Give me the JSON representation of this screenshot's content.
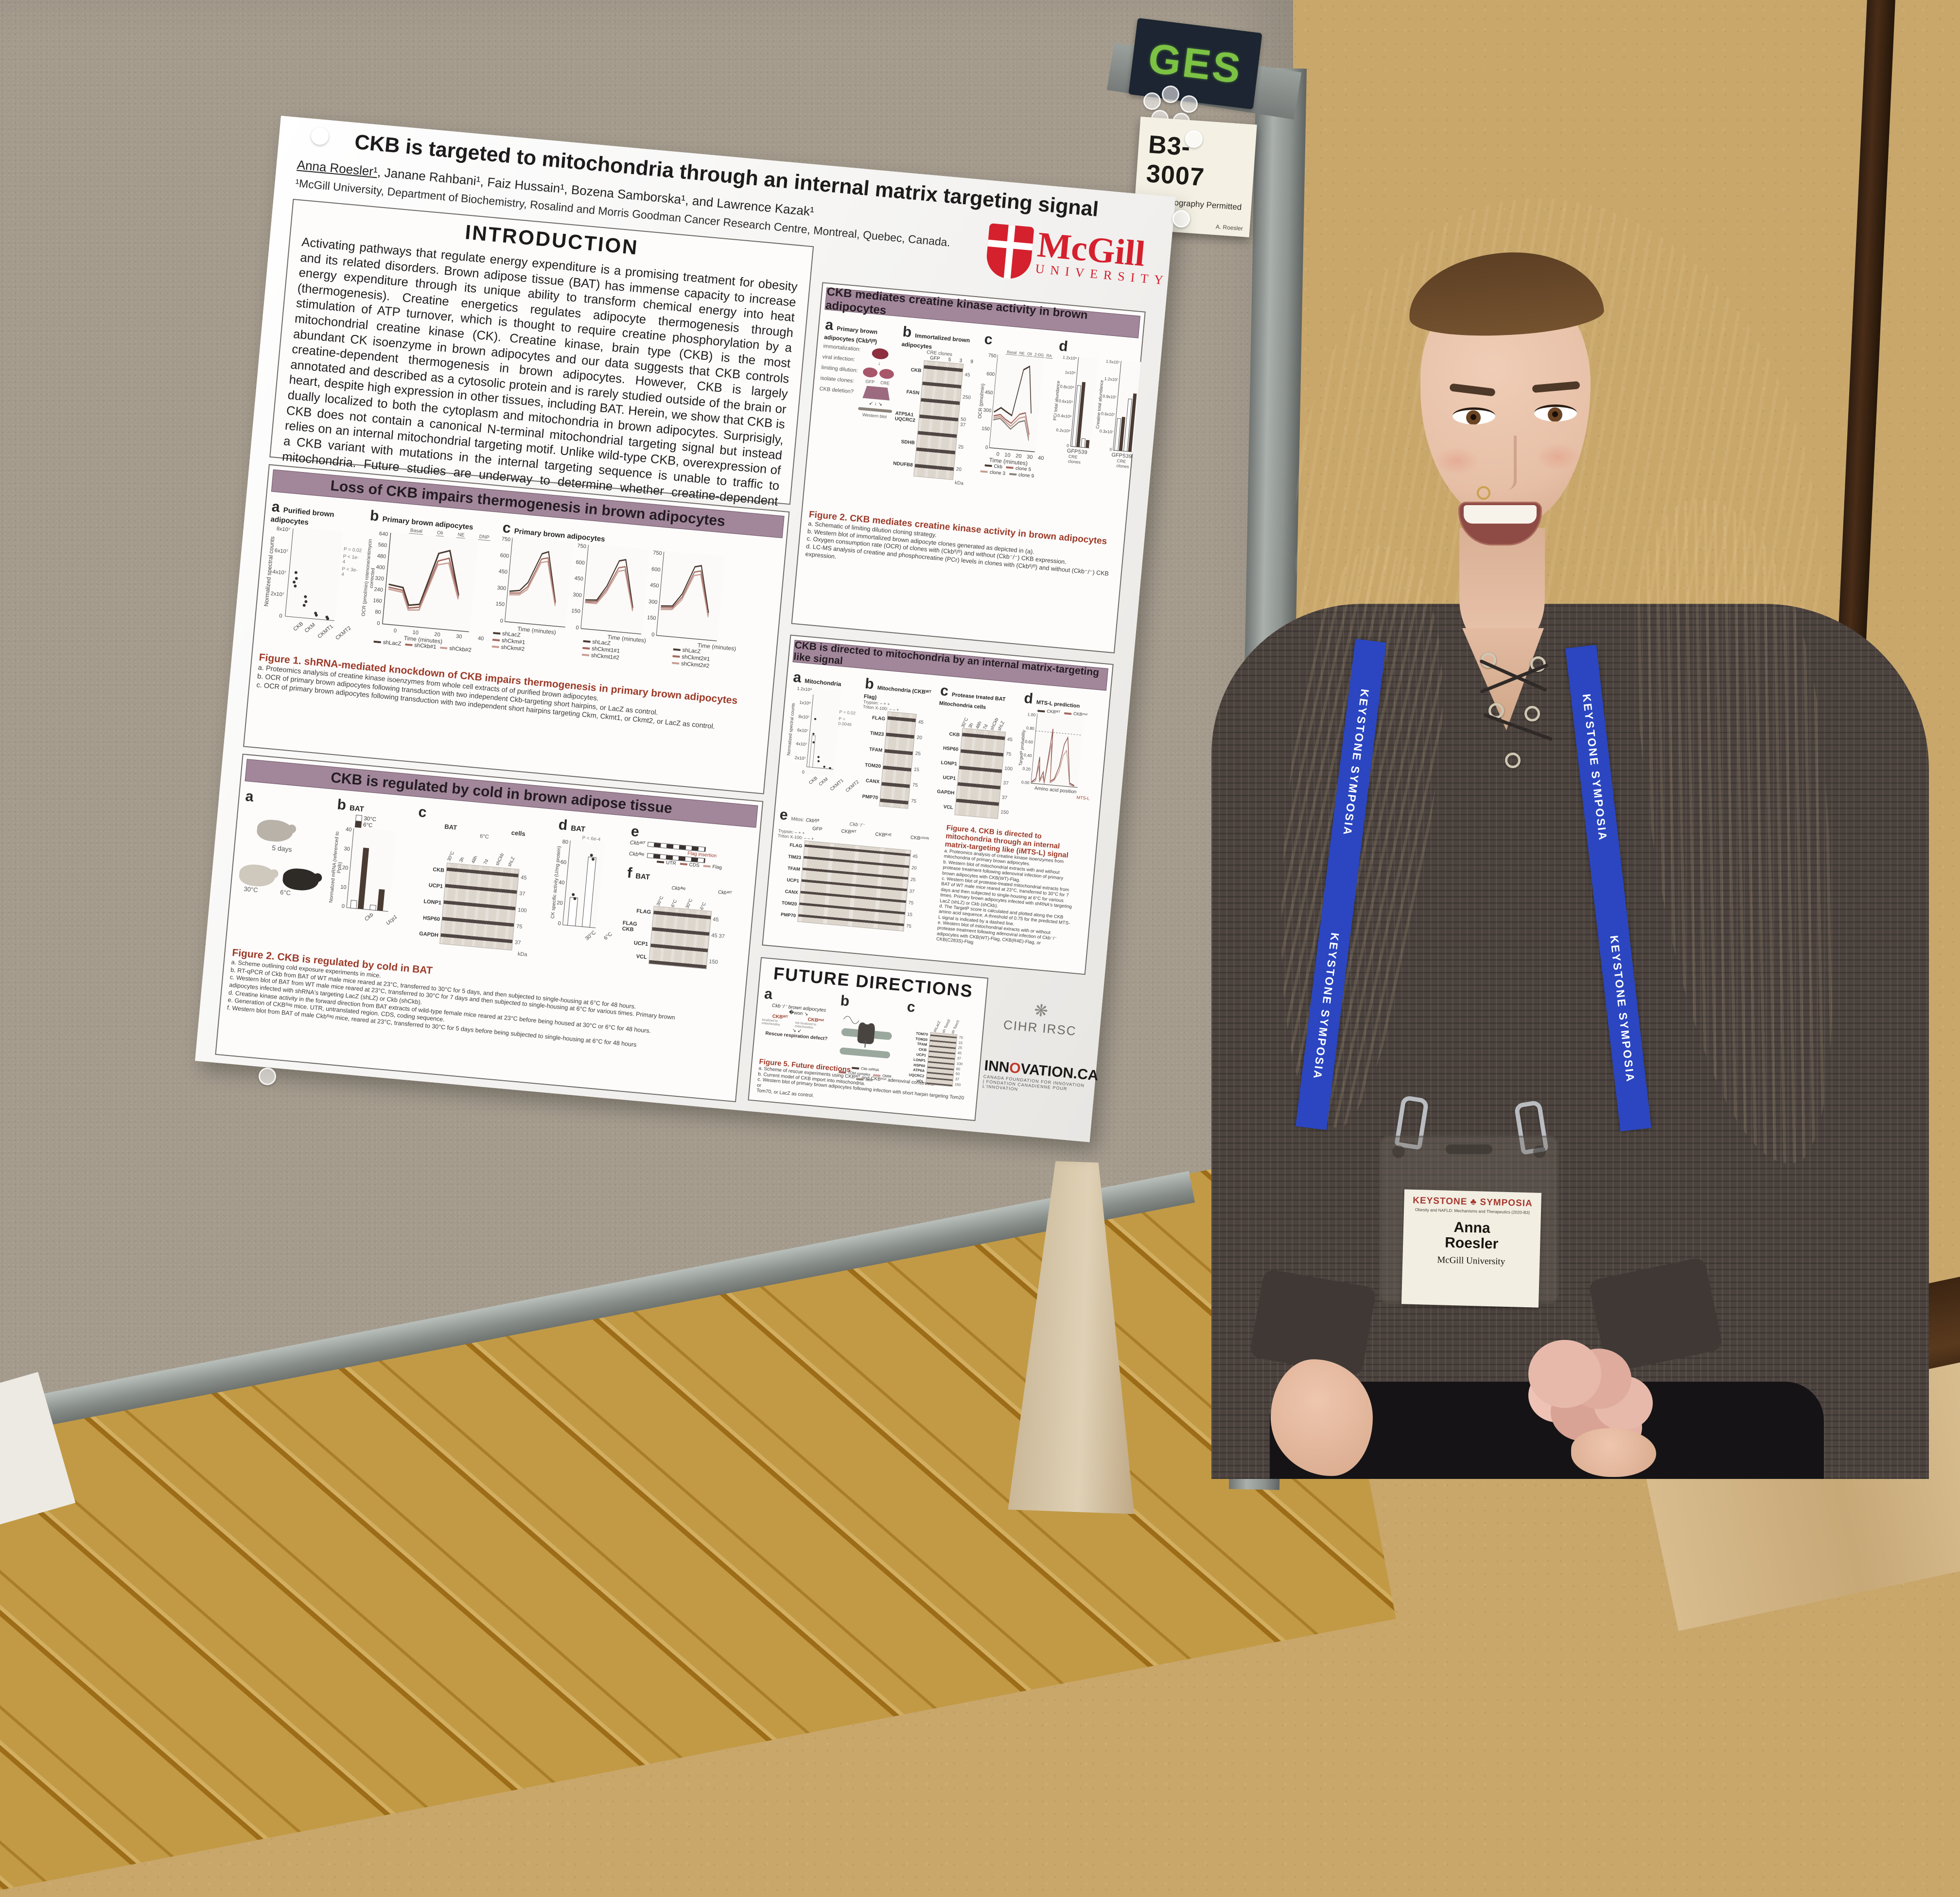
{
  "board": {
    "ges_sticker": "GES"
  },
  "location_card": {
    "code": "B3-3007",
    "notice": "No Photography Permitted",
    "name": "A. Roesler"
  },
  "poster": {
    "title": "CKB is targeted to mitochondria through an internal matrix targeting signal",
    "presenter": "Anna Roesler¹",
    "coauthors": ", Janane Rahbani¹, Faiz Hussain¹, Bozena Samborska¹, and Lawrence Kazak¹",
    "affiliation": "¹McGill University, Department of Biochemistry, Rosalind and Morris Goodman Cancer Research Centre, Montreal, Quebec, Canada.",
    "logo": {
      "name": "McGill",
      "sub": "UNIVERSITY"
    },
    "intro": {
      "heading": "INTRODUCTION",
      "text": "Activating pathways that regulate energy expenditure is a promising treatment for obesity and its related disorders. Brown adipose tissue (BAT) has immense capacity to increase energy expenditure through its unique ability to transform chemical energy into heat (thermogenesis). Creatine energetics regulates adipocyte thermogenesis through stimulation of ATP turnover, which is thought to require creatine phosphorylation by a mitochondrial creatine kinase (CK). Creatine kinase, brain type (CKB) is the most abundant CK isoenzyme in brown adipocytes and our data suggests that CKB controls creatine-dependent thermogenesis in brown adipocytes. However, CKB is largely annotated and described as a cytosolic protein and is rarely studied outside of the brain or heart, despite high expression in other tissues, including BAT. Herein, we show that CKB is dually localized to both the cytoplasm and mitochondria in brown adipocytes. Surprisigly, CKB does not contain a canonical N-terminal mitochondrial targeting signal but instead relies on an internal mitochondrial targeting motif. Unlike wild-type CKB, overexpression of a CKB variant with mutations in the internal targeting sequence is unable to traffic to mitochondria. Future studies are underway to determine whether creatine-dependent thermogenesis relies on mitochondrial CKB."
    },
    "loss": {
      "banner": "Loss of CKB impairs thermogenesis in brown adipocytes",
      "a": {
        "label": "a",
        "title": "Purified brown adipocytes",
        "ylabel": "Normalized spectral counts",
        "yticks": [
          "8x10⁷",
          "6x10⁷",
          "4x10⁷",
          "2x10⁷",
          "0"
        ],
        "cats": [
          "CKB",
          "CKM",
          "CKMT1",
          "CKMT2"
        ],
        "pvals": [
          "P = 0.02",
          "P < 1e-4",
          "P < 3e-4"
        ]
      },
      "b": {
        "label": "b",
        "title": "Primary brown adipocytes",
        "ylabel": "OCR (pmol/min) rotenone/antimycin corrected",
        "yticks": [
          "640",
          "560",
          "480",
          "400",
          "320",
          "240",
          "160",
          "80",
          "0"
        ],
        "phases": [
          "Basal",
          "Oli",
          "NE",
          "DNP"
        ],
        "xticks": [
          "0",
          "10",
          "20",
          "30",
          "40"
        ],
        "xlabel": "Time (minutes)",
        "legend": [
          "shLacZ",
          "shCkb#1",
          "shCkb#2"
        ]
      },
      "c": {
        "label": "c",
        "title": "Primary brown adipocytes",
        "ylabel": "OCR (pmol/min) rotenone/antimycin corrected",
        "yticks": [
          "750",
          "600",
          "450",
          "300",
          "150",
          "0"
        ],
        "phases": [
          "Basal",
          "NE",
          "DNP",
          "RA"
        ],
        "xticks": [
          "0",
          "10",
          "20",
          "30",
          "40"
        ],
        "xlabel": "Time (minutes)",
        "legend1": [
          "shLacZ",
          "shCkm#1",
          "shCkm#2"
        ],
        "legend2": [
          "shLacZ",
          "shCkmt1#1",
          "shCkmt1#2"
        ],
        "legend3": [
          "shLacZ",
          "shCkmt2#1",
          "shCkmt2#2"
        ]
      },
      "caption_title": "Figure 1. shRNA-mediated knockdown of CKB impairs thermogenesis in primary brown adipocytes",
      "caption_lines": [
        "a. Proteomics analysis of creatine kinase isoenzymes from whole cell extracts of of purified brown adipocytes.",
        "b. OCR of primary brown adipocytes following transduction with two independent Ckb-targeting short hairpins, or LacZ as control.",
        "c. OCR of primary brown adipocytes following transduction with two independent short hairpins targeting Ckm, Ckmt1, or Ckmt2, or LacZ as control."
      ]
    },
    "cold": {
      "banner": "CKB is regulated by cold in brown adipose tissue",
      "a": {
        "label": "a",
        "days": "5 days",
        "temp_start": "30°C",
        "temp_warm": "30°C",
        "temp_cold": "6°C"
      },
      "b": {
        "label": "b",
        "title": "BAT",
        "legend": [
          "30°C",
          "6°C"
        ],
        "ylabel": "Normalized mRNA (referenced to Ppib)",
        "yticks": [
          "40",
          "30",
          "20",
          "10",
          "0"
        ],
        "cats": [
          "Ckb",
          "Ucp1"
        ],
        "pvals": [
          "P < 1e-4",
          "P < 1e-4"
        ]
      },
      "c": {
        "label": "c",
        "group1": "BAT",
        "group2": "cells",
        "subgroup": "6°C",
        "cols": [
          "30°C",
          "3h",
          "48h",
          "7d",
          "shCkb",
          "shLZ"
        ],
        "rows": [
          "CKB",
          "UCP1",
          "LONP1",
          "HSP60",
          "GAPDH"
        ],
        "kda": [
          "45",
          "37",
          "100",
          "75",
          "37"
        ],
        "kda_unit": "kDa"
      },
      "d": {
        "label": "d",
        "title": "BAT",
        "ylabel": "CK specific activity (U/mg protein)",
        "yticks": [
          "80",
          "60",
          "40",
          "20",
          "0"
        ],
        "cats": [
          "30°C",
          "6°C"
        ],
        "pval": "P < 6e-4"
      },
      "e": {
        "label": "e",
        "row1": "Ckbᵂᵀ",
        "row2": "Ckbᶠˡᵃᵍ",
        "note": "Flag insertion",
        "legend": [
          "UTR",
          "CDS",
          "Flag"
        ]
      },
      "f": {
        "label": "f",
        "title": "BAT",
        "groups": [
          "Ckbᶠˡᵃᵍ",
          "Ckbᵂᵀ"
        ],
        "cols": [
          "30°C",
          "6°C",
          "30°C",
          "6°C"
        ],
        "rows": [
          "FLAG",
          "FLAG CKB",
          "UCP1",
          "VCL"
        ],
        "kda": [
          "45",
          "45  37",
          "",
          "150"
        ],
        "kda_unit": "kDa"
      },
      "caption_title": "Figure 2. CKB is regulated by cold in BAT",
      "caption_lines": [
        "a. Scheme outlining cold exposure experiments in mice.",
        "b. RT-qPCR of Ckb from BAT of WT male mice reared at 23°C, transferred to 30°C for 5 days, and then subjected to single-housing at 6°C for 48 hours.",
        "c. Western blot of BAT from WT male mice reared at 23°C, transferred to 30°C for 7 days and then subjected to single-housing at 6°C for various times. Primary brown",
        "adipocytes infected with shRNA's targeting LacZ (shLZ) or Ckb (shCkb).",
        "d. Creatine kinase activity in the forward direction from BAT extracts of wild-type female mice reared at 23°C before being housed at 30°C or 6°C for 48 hours.",
        "e. Generation of CKBᶠˡᵃᵍ mice. UTR, untranslated region. CDS, coding sequence.",
        "f. Western blot from BAT of male Ckbᶠˡᵃᵍ mice, reared at 23°C, transferred to 30°C for 5 days before being subjected to single-housing at 6°C for 48 hours"
      ]
    },
    "mediates": {
      "banner": "CKB mediates creatine kinase activity in brown adipocytes",
      "a": {
        "label": "a",
        "title": "Primary brown adipocytes (Ckbᶠˡ/ᶠˡ)",
        "steps": [
          "immortalization:",
          "viral infection:",
          "limiting dilution:",
          "isolate clones:",
          "CKB deletion?"
        ],
        "gfp": "GFP",
        "cre": "CRE",
        "western": "Western blot"
      },
      "b": {
        "label": "b",
        "title": "Immortalized brown adipocytes",
        "col_group": "CRE clones",
        "cols": [
          "GFP",
          "5",
          "3",
          "9"
        ],
        "rows": [
          "CKB",
          "FASN",
          "ATP5A1 UQCRC2",
          "SDHB",
          "NDUFB8"
        ],
        "kda": [
          "45",
          "250",
          "50  37",
          "25",
          "20"
        ],
        "kda_unit": "kDa"
      },
      "c": {
        "label": "c",
        "ylabel": "OCR (pmol/min)",
        "yticks": [
          "750",
          "600",
          "450",
          "300",
          "150",
          "0"
        ],
        "phases": [
          "Basal",
          "NE",
          "Oli",
          "2-DG",
          "RA"
        ],
        "xticks": [
          "0",
          "10",
          "20",
          "30",
          "40"
        ],
        "xlabel": "Time (minutes)",
        "legend": [
          "Ckb",
          "clone 5",
          "clone 3",
          "clone 9"
        ]
      },
      "d": {
        "label": "d",
        "ylabel1": "PCr total abundance",
        "yticks1": [
          "1.2x10⁹",
          "1x10⁹",
          "0.8x10⁹",
          "0.6x10⁹",
          "0.4x10⁹",
          "0.2x10⁹",
          "0"
        ],
        "ylabel2": "Creatine total abundance",
        "yticks2": [
          "1.5x10⁷",
          "1.2x10⁷",
          "0.9x10⁷",
          "0.6x10⁷",
          "0.3x10⁷",
          "0"
        ],
        "cats": [
          "GFP",
          "5",
          "3",
          "9"
        ],
        "xgroup": "CRE clones"
      },
      "caption_title": "Figure 2. CKB mediates creatine kinase activity in brown adipocytes",
      "caption_lines": [
        "a. Schematic of limiting dilution cloning strategy.",
        "b. Western blot of immortalized brown adipocyte clones generated as depicted in (a).",
        "c. Oxygen consumption rate (OCR) of clones with (Ckbᶠˡ/ᶠˡ) and without (Ckb⁻/⁻) CKB expression.",
        "d. LC-MS analysis of creatine and phosphocreatine (PCr) levels in clones with (Ckbᶠˡ/ᶠˡ) and without (Ckb⁻/⁻) CKB expression."
      ]
    },
    "directed": {
      "banner": "CKB is directed to mitochondria by an internal matrix-targeting like signal",
      "a": {
        "label": "a",
        "title": "Mitochondria",
        "ylabel": "Normalized spectral counts",
        "yticks": [
          "1.2x10⁹",
          "1x10⁹",
          "8x10⁷",
          "6x10⁷",
          "4x10⁷",
          "2x10⁷",
          "0"
        ],
        "cats": [
          "CKB",
          "CKM",
          "CKMT1",
          "CKMT2"
        ],
        "pvals": [
          "P = 0.02",
          "P = 0.0046"
        ]
      },
      "b": {
        "label": "b",
        "title": "Mitochondria (CKBᵂᵀ Flag)",
        "cond1": "Trypsin:  –  +  +",
        "cond2": "Triton X-100:  –  –  +",
        "rows": [
          "FLAG",
          "TIM23",
          "TFAM",
          "TOM20",
          "CANX",
          "PMP70"
        ],
        "kda": [
          "45",
          "20",
          "25",
          "15",
          "75",
          "75"
        ],
        "kda_unit": "kDa"
      },
      "c": {
        "label": "c",
        "title": "Protease treated BAT Mitochondria cells",
        "subgroup": "6°C",
        "cols": [
          "30°C",
          "3h",
          "48h",
          "7d",
          "shCkb",
          "shLZ"
        ],
        "rows": [
          "CKB",
          "HSP60",
          "LONP1",
          "UCP1",
          "GAPDH",
          "VCL"
        ],
        "kda": [
          "45",
          "75",
          "100",
          "37",
          "37",
          "150"
        ],
        "kda_unit": "kDa"
      },
      "d": {
        "label": "d",
        "title": "MTS-L prediction",
        "legend": [
          "CKBᵂᵀ",
          "CKBᵐᵘᵗ"
        ],
        "annotation": "MTS-L",
        "ylabel": "TargetP probability",
        "yticks": [
          "1.00",
          "0.80",
          "0.60",
          "0.40",
          "0.20",
          "0.00"
        ],
        "xlabel": "Amino acid position"
      },
      "e": {
        "label": "e",
        "mitos_label": "Mitos:",
        "mitos": "Ckbᶠˡ/ᶠˡ",
        "rescue_label": "Rescue:",
        "top_group": "Ckb⁻/⁻",
        "groups": [
          "GFP",
          "CKBᵂᵀ",
          "CKBᴿ⁴ᴱ",
          "CKBᶜ²⁸³ˢ"
        ],
        "cond1": "Trypsin:  –  +  +",
        "cond2": "Triton X-100:  –  –  +",
        "rows": [
          "FLAG",
          "TIM23",
          "TFAM",
          "UCP1",
          "CANX",
          "TOM20",
          "PMP70"
        ],
        "kda": [
          "45",
          "20",
          "25",
          "37",
          "75",
          "15",
          "75"
        ],
        "kda_unit": "kDa"
      },
      "caption_title": "Figure 4. CKB is directed to mitochondria through an internal matrix-targeting like (iMTS-L) signal",
      "caption_lines": [
        "a. Proteomics analysis of creatine kinase isoenzymes from mitochondria of primary brown adipocytes.",
        "b. Western blot of mitochondrial extracts with and without protease treatment following adenoviral infection of primary brown adipocytes with CKB(WT)-Flag.",
        "c. Western blot of protease-treated mitochondrial extracts from BAT of WT male mice reared at 23°C, transferred to 30°C for 7 days and then subjected to single-housing at 6°C for various times. Primary brown adipocytes infected with shRNA's targeting LacZ (shLZ) or Ckb (shCkb).",
        "d. The TargetP score is calculated and plotted along the CKB amino acid sequence. A threshold of 0.75 for the predicted MTS-L signal is indicated by a dashed line.",
        "e. Western blot of mitochondrial extracts with or without protease treatment following adenoviral infection of Ckb⁻/⁻ adipocytes with CKB(WT)-Flag, CKB(R4E)-Flag, or CKB(C283S)-Flag"
      ]
    },
    "future": {
      "heading": "FUTURE DIRECTIONS",
      "a": {
        "label": "a",
        "top": "Ckb⁻/⁻ brown adipocytes",
        "left": "CKBᵂᵀ",
        "right": "CKBᵐᵘᵗ",
        "left_note": "localized to mitochondria",
        "right_note": "not localized to mitochondria",
        "bottom": "Rescue respiration defect?"
      },
      "b": {
        "label": "b",
        "labels": [
          "Ckb mRNA",
          "TOM complex",
          "OMM",
          "IMM"
        ]
      },
      "c": {
        "label": "c",
        "cols": [
          "shLacZ",
          "sh Tom20",
          "sh Tom70"
        ],
        "rows": [
          "TOM70",
          "TOM20",
          "TFAM",
          "CKB",
          "UCP1",
          "LONP1",
          "HSP60",
          "ATP6A",
          "UQCRC2",
          "VCL"
        ],
        "kda": [
          "70",
          "15",
          "25",
          "45",
          "37",
          "100",
          "60",
          "50",
          "37",
          "150"
        ],
        "kda_unit": "kDa"
      },
      "caption_title": "Figure 5. Future directions",
      "caption_lines": [
        "a. Scheme of rescue experiments using CKBᵂᵀ and CKBᵐᵘᵗ adenoviral constructs.",
        "b. Current model of CKB import into mitochondria.",
        "c. Western blot of primary brown adipocytes following infection with short harpin targeting Tom20 or",
        "Tom70, or LacZ as control."
      ],
      "logos": {
        "cihr": "CIHR IRSC",
        "innovation_left": "INN",
        "innovation_o": "O",
        "innovation_right": "VATION.CA",
        "innovation_sub": "CANADA FOUNDATION FOR INNOVATION | FONDATION CANADIENNE POUR L'INNOVATION"
      }
    }
  },
  "person": {
    "lanyard_text": "KEYSTONE SYMPOSIA",
    "badge": {
      "brand_left": "KEYSTONE",
      "brand_right": "SYMPOSIA",
      "meeting": "Obesity and NAFLD: Mechanisms and Therapeutics (2020-B3)",
      "name_line1": "Anna",
      "name_line2": "Roesler",
      "org": "McGill University"
    }
  },
  "colors": {
    "banner_bg": "#a2879b",
    "caption_red": "#9c3a28",
    "mcgill_red": "#d5202e",
    "lanyard_blue": "#2b46c0",
    "keystone_red": "#a6372f",
    "board_fabric": "#a49b8d",
    "wall_tan": "#c9a76b"
  }
}
